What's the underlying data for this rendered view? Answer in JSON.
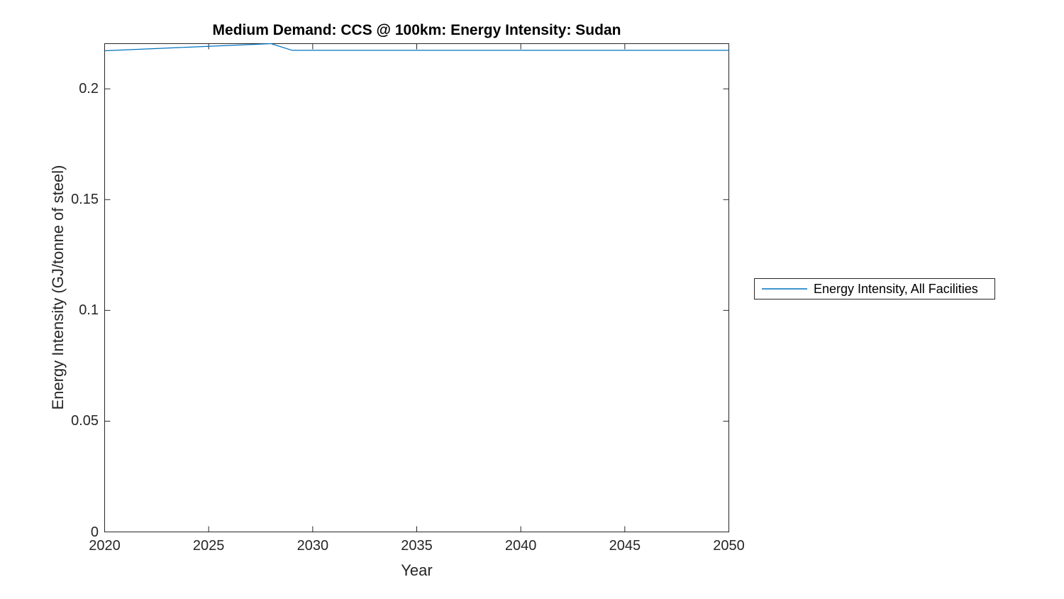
{
  "figure": {
    "title": "Medium Demand: CCS @ 100km: Energy Intensity: Sudan",
    "x_axis_label": "Year",
    "y_axis_label": "Energy Intensity (GJ/tonne of steel)"
  },
  "legend": {
    "items": [
      {
        "label": "Energy Intensity, All Facilities",
        "line_color": "#0072BD"
      }
    ]
  },
  "colors": {
    "line": "#0072BD",
    "axis": "#262626",
    "title_text": "#000000",
    "background": "#FFFFFF"
  },
  "chart_data": {
    "type": "line",
    "title": "Medium Demand: CCS @ 100km: Energy Intensity: Sudan",
    "xlabel": "Year",
    "ylabel": "Energy Intensity (GJ/tonne of steel)",
    "xlim": [
      2020,
      2050
    ],
    "ylim": [
      0,
      0.2204
    ],
    "x_ticks": [
      2020,
      2025,
      2030,
      2035,
      2040,
      2045,
      2050
    ],
    "y_ticks": [
      0,
      0.05,
      0.1,
      0.15,
      0.2
    ],
    "grid": false,
    "legend_position": "right-outside",
    "series": [
      {
        "name": "Energy Intensity, All Facilities",
        "color": "#0072BD",
        "x": [
          2020,
          2021,
          2022,
          2023,
          2024,
          2025,
          2026,
          2027,
          2028,
          2029,
          2030,
          2031,
          2032,
          2033,
          2034,
          2035,
          2036,
          2037,
          2038,
          2039,
          2040,
          2041,
          2042,
          2043,
          2044,
          2045,
          2046,
          2047,
          2048,
          2049,
          2050
        ],
        "y": [
          0.2172,
          0.2176,
          0.218,
          0.2184,
          0.2188,
          0.2192,
          0.2196,
          0.22,
          0.2204,
          0.2174,
          0.2174,
          0.2174,
          0.2174,
          0.2174,
          0.2174,
          0.2174,
          0.2174,
          0.2174,
          0.2174,
          0.2174,
          0.2174,
          0.2174,
          0.2174,
          0.2174,
          0.2174,
          0.2174,
          0.2174,
          0.2174,
          0.2174,
          0.2174,
          0.2174
        ]
      }
    ]
  }
}
